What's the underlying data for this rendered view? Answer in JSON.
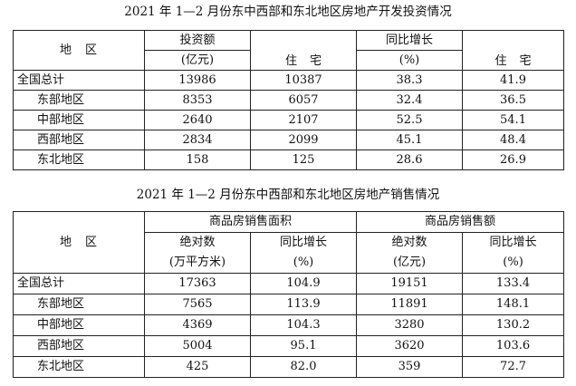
{
  "table1": {
    "title": "2021 年 1—2 月份东中西部和东北地区房地产开发投资情况",
    "headers": {
      "region_a": "地",
      "region_b": "区",
      "investment": "投资额",
      "investment_unit": "(亿元)",
      "residential_a": "住",
      "residential_b": "宅",
      "growth": "同比增长",
      "growth_unit": "(%)",
      "residential2_a": "住",
      "residential2_b": "宅"
    },
    "rows": [
      {
        "region": "全国总计",
        "investment": "13986",
        "residential": "10387",
        "growth": "38.3",
        "residential_growth": "41.9"
      },
      {
        "region": "东部地区",
        "investment": "8353",
        "residential": "6057",
        "growth": "32.4",
        "residential_growth": "36.5"
      },
      {
        "region": "中部地区",
        "investment": "2640",
        "residential": "2107",
        "growth": "52.5",
        "residential_growth": "54.1"
      },
      {
        "region": "西部地区",
        "investment": "2834",
        "residential": "2099",
        "growth": "45.1",
        "residential_growth": "48.4"
      },
      {
        "region": "东北地区",
        "investment": "158",
        "residential": "125",
        "growth": "28.6",
        "residential_growth": "26.9"
      }
    ]
  },
  "table2": {
    "title": "2021 年 1—2 月份东中西部和东北地区房地产销售情况",
    "headers": {
      "region_a": "地",
      "region_b": "区",
      "area_group": "商品房销售面积",
      "sales_group": "商品房销售额",
      "absolute": "绝对数",
      "area_unit": "(万平方米)",
      "growth": "同比增长",
      "growth_unit": "(%)",
      "absolute2": "绝对数",
      "sales_unit": "(亿元)",
      "growth2": "同比增长",
      "growth2_unit": "(%)"
    },
    "rows": [
      {
        "region": "全国总计",
        "area": "17363",
        "area_growth": "104.9",
        "sales": "19151",
        "sales_growth": "133.4"
      },
      {
        "region": "东部地区",
        "area": "7565",
        "area_growth": "113.9",
        "sales": "11891",
        "sales_growth": "148.1"
      },
      {
        "region": "中部地区",
        "area": "4369",
        "area_growth": "104.3",
        "sales": "3280",
        "sales_growth": "130.2"
      },
      {
        "region": "西部地区",
        "area": "5004",
        "area_growth": "95.1",
        "sales": "3620",
        "sales_growth": "103.6"
      },
      {
        "region": "东北地区",
        "area": "425",
        "area_growth": "82.0",
        "sales": "359",
        "sales_growth": "72.7"
      }
    ]
  }
}
